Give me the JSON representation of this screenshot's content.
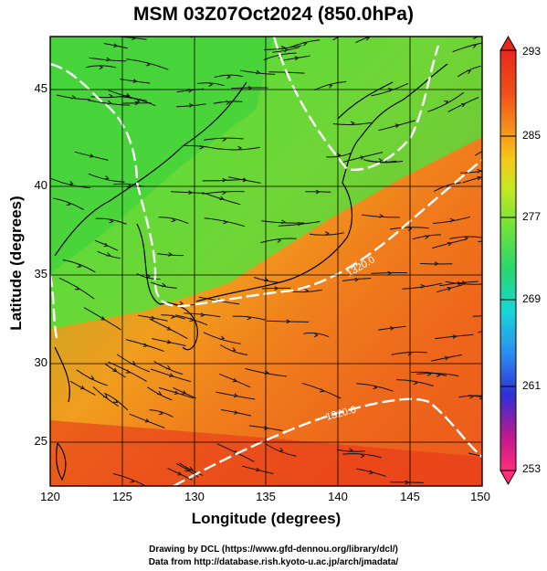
{
  "title": "MSM 03Z07Oct2024 (850.0hPa)",
  "x_axis": {
    "label": "Longitude (degrees)",
    "ticks": [
      "120",
      "125",
      "130",
      "135",
      "140",
      "145",
      "150"
    ]
  },
  "y_axis": {
    "label": "Latitude  (degrees)",
    "ticks": [
      "45",
      "40",
      "35",
      "30",
      "25"
    ]
  },
  "colorbar": {
    "ticks": [
      "293",
      "285",
      "277",
      "269",
      "261",
      "253"
    ],
    "colors": [
      "#ff2d7a",
      "#c0198e",
      "#2f2fd6",
      "#2a8ff0",
      "#19d6d6",
      "#2ad66b",
      "#6fe33a",
      "#c4e822",
      "#f6c81a",
      "#f58a1a",
      "#ef4e1a",
      "#e8281a"
    ]
  },
  "contour_labels": [
    "1320.0",
    "1320.0"
  ],
  "footer": {
    "line1": "Drawing by DCL (https://www.gfd-dennou.org/library/dcl/)",
    "line2": "Data from http://database.rish.kyoto-u.ac.jp/arch/jmadata/"
  }
}
